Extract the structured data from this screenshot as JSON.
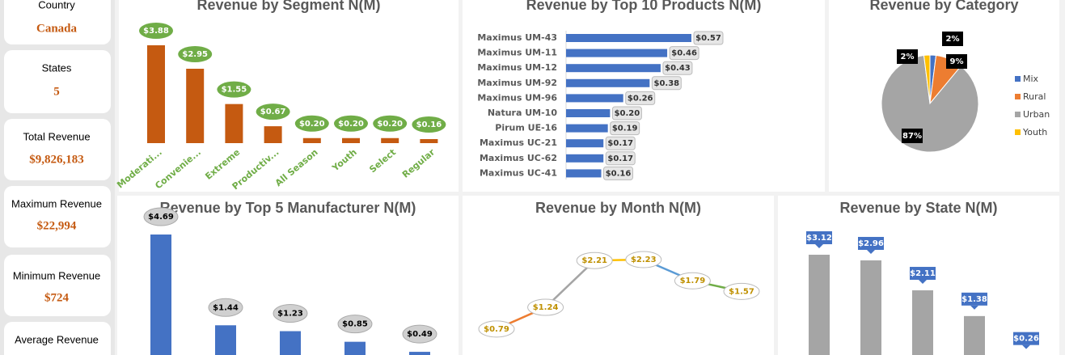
{
  "kpis": [
    {
      "label": "Country",
      "value": "Canada"
    },
    {
      "label": "States",
      "value": "5"
    },
    {
      "label": "Total Revenue",
      "value": "$9,826,183"
    },
    {
      "label": "Maximum Revenue",
      "value": "$22,994"
    },
    {
      "label": "Minimum Revenue",
      "value": "$724"
    },
    {
      "label": "Average Revenue"
    }
  ],
  "chart_data": [
    {
      "type": "bar",
      "title": "Revenue by Segment N(M)",
      "color": "#c55a11",
      "categories": [
        "Moderati...",
        "Convenie...",
        "Extreme",
        "Productiv...",
        "All Season",
        "Youth",
        "Select",
        "Regular"
      ],
      "values": [
        3.88,
        2.95,
        1.55,
        0.67,
        0.2,
        0.2,
        0.2,
        0.16
      ],
      "value_labels": [
        "$3.88",
        "$2.95",
        "$1.55",
        "$0.67",
        "$0.20",
        "$0.20",
        "$0.20",
        "$0.16"
      ]
    },
    {
      "type": "barh",
      "title": "Revenue by Top 10 Products N(M)",
      "color": "#4472c4",
      "categories": [
        "Maximus UM-43",
        "Maximus UM-11",
        "Maximus UM-12",
        "Maximus UM-92",
        "Maximus UM-96",
        "Natura UM-10",
        "Pirum UE-16",
        "Maximus UC-21",
        "Maximus UC-62",
        "Maximus UC-41"
      ],
      "values": [
        0.57,
        0.46,
        0.43,
        0.38,
        0.26,
        0.2,
        0.19,
        0.17,
        0.17,
        0.16
      ],
      "value_labels": [
        "$0.57",
        "$0.46",
        "$0.43",
        "$0.38",
        "$0.26",
        "$0.20",
        "$0.19",
        "$0.17",
        "$0.17",
        "$0.16"
      ]
    },
    {
      "type": "pie",
      "title": "Revenue by Category",
      "categories": [
        "Mix",
        "Rural",
        "Urban",
        "Youth"
      ],
      "values": [
        2,
        9,
        87,
        2
      ],
      "value_labels": [
        "2%",
        "9%",
        "87%",
        "2%"
      ],
      "colors": [
        "#4472c4",
        "#ed7d31",
        "#a5a5a5",
        "#ffc000"
      ]
    },
    {
      "type": "bar",
      "title": "Revenue by Top 5 Manufacturer N(M)",
      "color": "#4472c4",
      "categories": [
        null,
        null,
        null,
        null,
        null
      ],
      "values": [
        4.69,
        1.44,
        1.23,
        0.85,
        0.49
      ],
      "value_labels": [
        "$4.69",
        "$1.44",
        "$1.23",
        "$0.85",
        "$0.49"
      ]
    },
    {
      "type": "line",
      "title": "Revenue by Month N(M)",
      "categories": [
        null,
        null,
        null,
        null,
        null,
        null
      ],
      "values": [
        0.79,
        1.24,
        2.21,
        2.23,
        1.79,
        1.57
      ],
      "value_labels": [
        "$0.79",
        "$1.24",
        "$2.21",
        "$2.23",
        "$1.79",
        "$1.57"
      ],
      "colors": [
        "#ed7d31",
        "#a5a5a5",
        "#ffc000",
        "#5b9bd5",
        "#70ad47"
      ]
    },
    {
      "type": "bar",
      "title": "Revenue by State N(M)",
      "color": "#a5a5a5",
      "categories": [
        null,
        null,
        null,
        null,
        null
      ],
      "values": [
        3.12,
        2.96,
        2.11,
        1.38,
        0.26
      ],
      "value_labels": [
        "$3.12",
        "$2.96",
        "$2.11",
        "$1.38",
        "$0.26"
      ]
    }
  ]
}
